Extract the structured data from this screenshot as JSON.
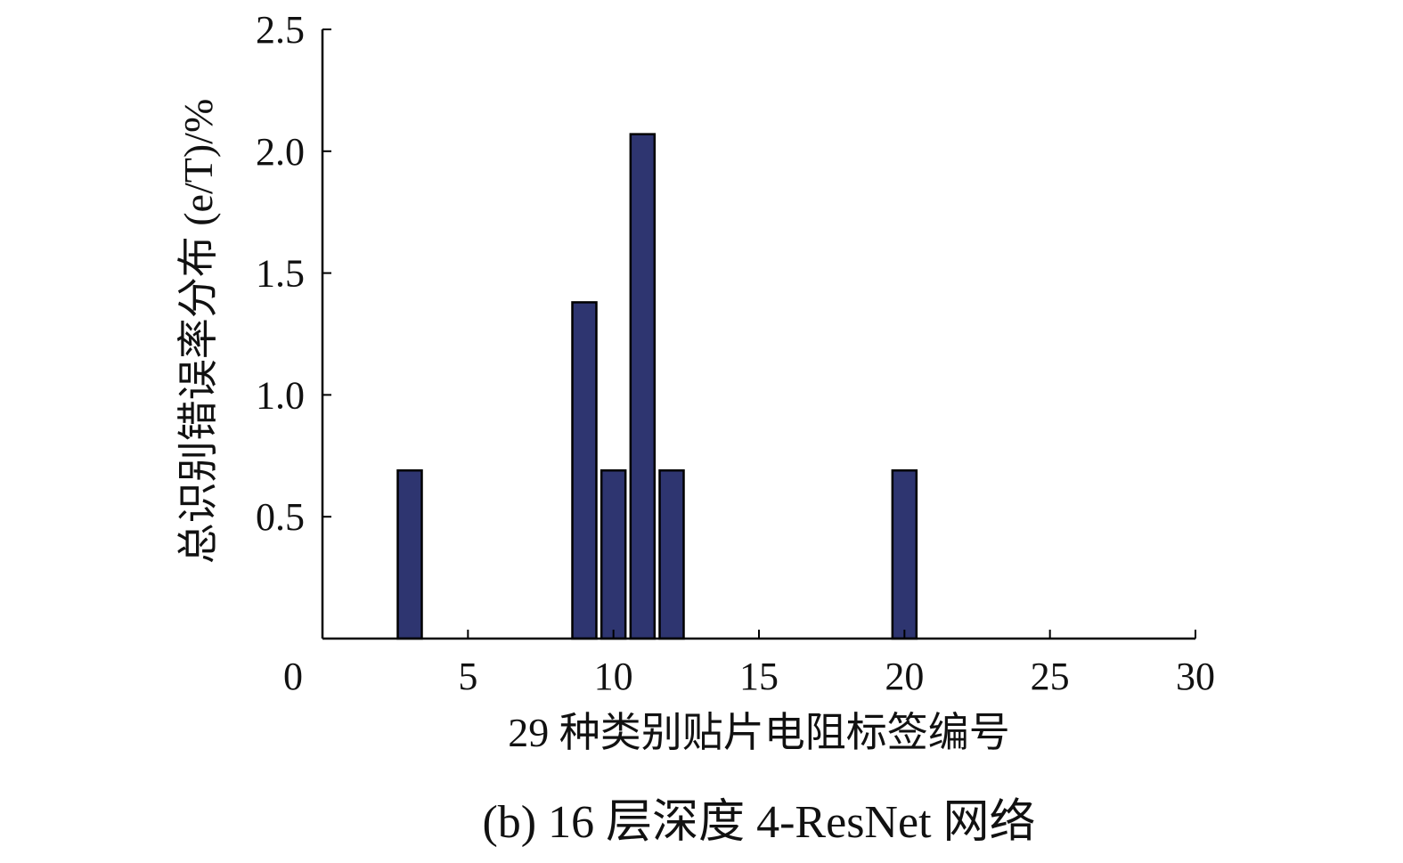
{
  "chart_data": {
    "type": "bar",
    "x": [
      3,
      9,
      10,
      11,
      12,
      20
    ],
    "values": [
      0.69,
      1.38,
      0.69,
      2.07,
      0.69,
      0.69
    ],
    "xlim": [
      0,
      30
    ],
    "ylim": [
      0,
      2.5
    ],
    "xticks": [
      "0",
      "5",
      "10",
      "15",
      "20",
      "25",
      "30"
    ],
    "yticks": [
      "0.5",
      "1.0",
      "1.5",
      "2.0",
      "2.5"
    ],
    "xlabel": "29 种类别贴片电阻标签编号",
    "ylabel": "总识别错误率分布 (e/T)/%",
    "caption": "(b) 16 层深度 4-ResNet 网络",
    "bar_color": "#2e3570",
    "grid": false,
    "legend": "none"
  }
}
